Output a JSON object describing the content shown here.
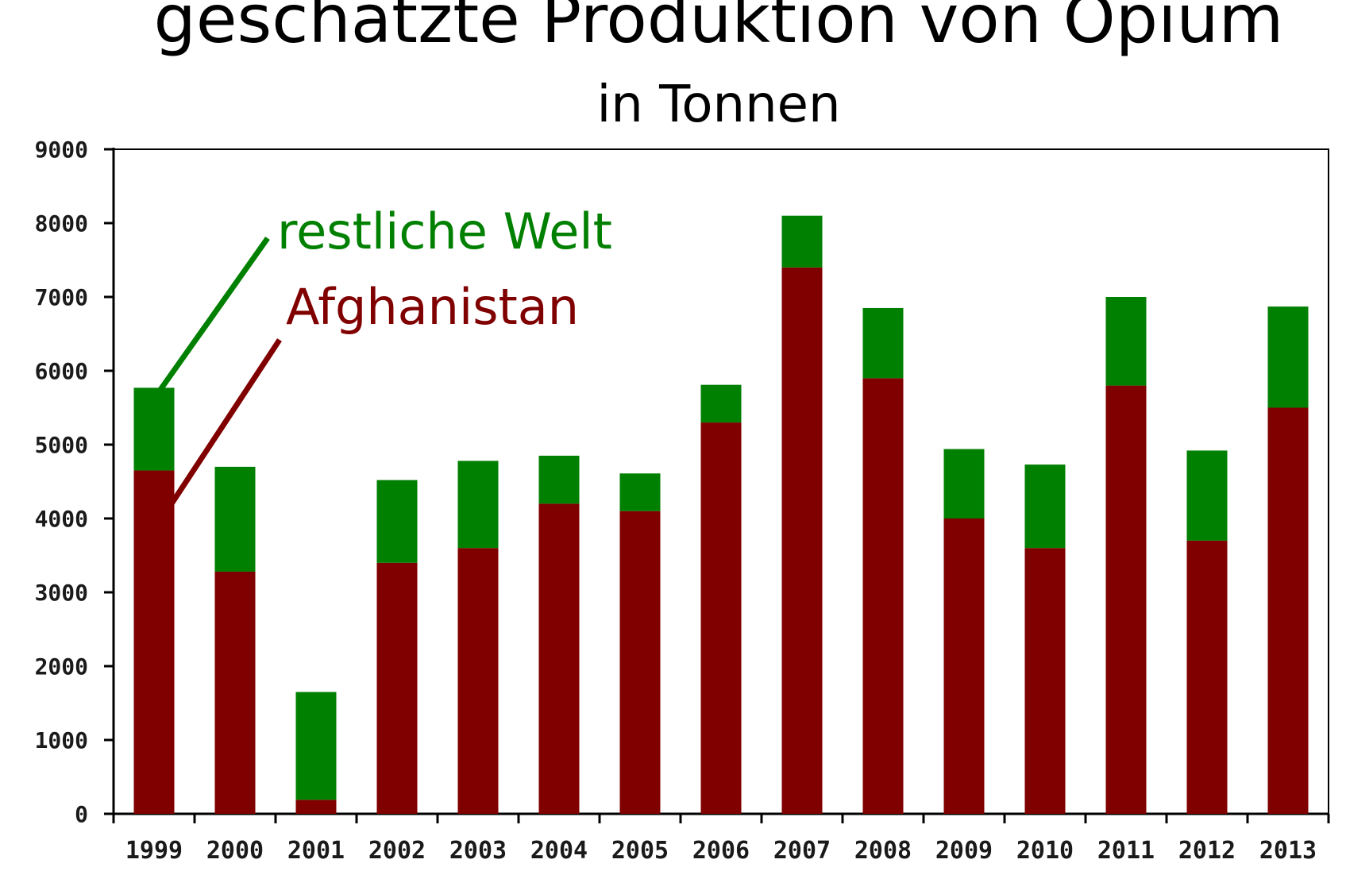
{
  "colors": {
    "afghanistan": "#800000",
    "rest_of_world": "#008000",
    "axis": "#000000",
    "background": "#ffffff"
  },
  "chart_data": {
    "type": "bar",
    "stacked": true,
    "title": "geschätzte Produktion von Opium",
    "subtitle": "in Tonnen",
    "xlabel": "",
    "ylabel": "",
    "ylim": [
      0,
      9000
    ],
    "yticks": [
      0,
      1000,
      2000,
      3000,
      4000,
      5000,
      6000,
      7000,
      8000,
      9000
    ],
    "grid": false,
    "legend_placement": "top-left",
    "categories": [
      "1999",
      "2000",
      "2001",
      "2002",
      "2003",
      "2004",
      "2005",
      "2006",
      "2007",
      "2008",
      "2009",
      "2010",
      "2011",
      "2012",
      "2013"
    ],
    "series": [
      {
        "name": "Afghanistan",
        "color": "#800000",
        "values": [
          4650,
          3280,
          190,
          3400,
          3600,
          4200,
          4100,
          5300,
          7400,
          5900,
          4000,
          3600,
          5800,
          3700,
          5500
        ]
      },
      {
        "name": "restliche Welt",
        "color": "#008000",
        "values": [
          1120,
          1420,
          1460,
          1120,
          1180,
          650,
          510,
          510,
          700,
          950,
          940,
          1130,
          1200,
          1220,
          1370
        ]
      }
    ]
  }
}
